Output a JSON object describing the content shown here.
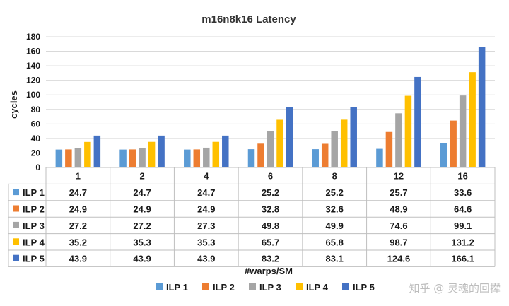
{
  "chart_data": {
    "type": "bar",
    "title": "m16n8k16 Latency",
    "xlabel": "#warps/SM",
    "ylabel": "cycles",
    "ylim": [
      0,
      180
    ],
    "yticks": [
      0,
      20,
      40,
      60,
      80,
      100,
      120,
      140,
      160,
      180
    ],
    "grid": true,
    "legend": "bottom",
    "data_table": true,
    "categories": [
      "1",
      "2",
      "4",
      "6",
      "8",
      "12",
      "16"
    ],
    "series": [
      {
        "name": "ILP 1",
        "color": "#5b9bd5",
        "values": [
          24.7,
          24.7,
          24.7,
          25.2,
          25.2,
          25.7,
          33.6
        ]
      },
      {
        "name": "ILP 2",
        "color": "#ed7d31",
        "values": [
          24.9,
          24.9,
          24.9,
          32.8,
          32.6,
          48.9,
          64.6
        ]
      },
      {
        "name": "ILP 3",
        "color": "#a5a5a5",
        "values": [
          27.2,
          27.2,
          27.3,
          49.8,
          49.9,
          74.6,
          99.1
        ]
      },
      {
        "name": "ILP 4",
        "color": "#ffc000",
        "values": [
          35.2,
          35.3,
          35.3,
          65.7,
          65.8,
          98.7,
          131.2
        ]
      },
      {
        "name": "ILP 5",
        "color": "#4472c4",
        "values": [
          43.9,
          43.9,
          43.9,
          83.2,
          83.1,
          124.6,
          166.1
        ]
      }
    ]
  },
  "watermark": "知乎 @ 灵魂的回撵"
}
